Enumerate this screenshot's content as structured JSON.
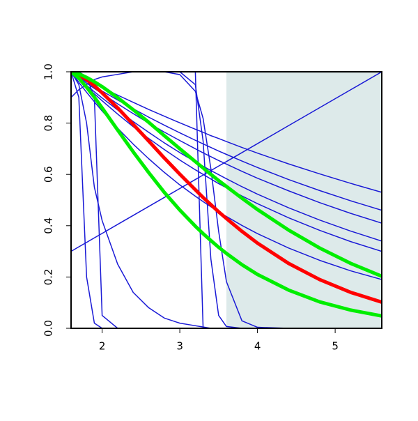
{
  "chart_data": {
    "type": "line",
    "x": [
      1.6,
      1.7,
      1.8,
      1.9,
      2.0,
      2.2,
      2.4,
      2.6,
      2.8,
      3.0,
      3.2,
      3.3,
      3.4,
      3.5,
      3.6,
      3.8,
      4.0,
      4.4,
      4.8,
      5.2,
      5.6
    ],
    "xlim": [
      1.6,
      5.6
    ],
    "ylim": [
      0,
      1
    ],
    "xticks": [
      2,
      3,
      4,
      5
    ],
    "yticks": [
      {
        "value": 0,
        "label": "0.0"
      },
      {
        "value": 0.2,
        "label": "0.2"
      },
      {
        "value": 0.4,
        "label": "0.4"
      },
      {
        "value": 0.6,
        "label": "0.6"
      },
      {
        "value": 0.8,
        "label": "0.8"
      },
      {
        "value": 1,
        "label": "1.0"
      }
    ],
    "shaded_region": {
      "xlim": [
        3.6,
        5.6
      ],
      "color": "#ddeaea"
    },
    "series": [
      {
        "color": "#1a1ad6",
        "width": 1.5,
        "values": [
          1,
          0.984,
          0.969,
          0.953,
          0.938,
          0.909,
          0.881,
          0.853,
          0.827,
          0.801,
          0.776,
          0.764,
          0.751,
          0.74,
          0.728,
          0.705,
          0.683,
          0.641,
          0.602,
          0.565,
          0.53
        ]
      },
      {
        "color": "#1a1ad6",
        "width": 1.5,
        "values": [
          1,
          0.981,
          0.962,
          0.944,
          0.925,
          0.89,
          0.856,
          0.823,
          0.792,
          0.762,
          0.733,
          0.719,
          0.705,
          0.691,
          0.678,
          0.652,
          0.627,
          0.58,
          0.537,
          0.497,
          0.46
        ]
      },
      {
        "color": "#1a1ad6",
        "width": 1.5,
        "values": [
          1,
          0.978,
          0.956,
          0.935,
          0.915,
          0.875,
          0.837,
          0.8,
          0.765,
          0.732,
          0.7,
          0.684,
          0.669,
          0.654,
          0.64,
          0.612,
          0.585,
          0.536,
          0.49,
          0.448,
          0.41
        ]
      },
      {
        "color": "#1a1ad6",
        "width": 1.5,
        "values": [
          1,
          0.973,
          0.947,
          0.922,
          0.898,
          0.851,
          0.806,
          0.764,
          0.723,
          0.685,
          0.649,
          0.632,
          0.615,
          0.599,
          0.583,
          0.552,
          0.523,
          0.47,
          0.422,
          0.379,
          0.34
        ]
      },
      {
        "color": "#1a1ad6",
        "width": 1.5,
        "values": [
          1,
          0.97,
          0.942,
          0.914,
          0.887,
          0.835,
          0.786,
          0.74,
          0.697,
          0.656,
          0.618,
          0.6,
          0.582,
          0.564,
          0.548,
          0.516,
          0.486,
          0.431,
          0.382,
          0.338,
          0.3
        ]
      },
      {
        "color": "#1a1ad6",
        "width": 1.5,
        "values": [
          1,
          0.959,
          0.92,
          0.883,
          0.847,
          0.78,
          0.718,
          0.661,
          0.608,
          0.559,
          0.515,
          0.494,
          0.474,
          0.454,
          0.436,
          0.401,
          0.369,
          0.313,
          0.265,
          0.224,
          0.19
        ]
      },
      {
        "color": "#1a1ad6",
        "width": 1.5,
        "values": [
          1,
          1,
          1,
          1,
          1,
          1,
          1,
          1,
          1,
          1,
          1,
          0,
          0,
          0,
          0,
          0,
          0,
          0,
          0,
          0,
          0
        ]
      },
      {
        "color": "#1a1ad6",
        "width": 1.5,
        "values": [
          0.9,
          0.93,
          0.95,
          0.97,
          0.98,
          0.99,
          1,
          1,
          1,
          1,
          0.95,
          0.73,
          0.27,
          0.05,
          0.007,
          0,
          0,
          0,
          0,
          0,
          0
        ]
      },
      {
        "color": "#1a1ad6",
        "width": 1.5,
        "values": [
          1,
          1,
          1,
          1,
          1,
          1,
          1,
          1,
          1,
          0.989,
          0.924,
          0.818,
          0.622,
          0.378,
          0.182,
          0.029,
          0.004,
          0,
          0,
          0,
          0
        ]
      },
      {
        "color": "#1a1ad6",
        "width": 1.5,
        "values": [
          1,
          0.9,
          0.2,
          0.02,
          0,
          0,
          0,
          0,
          0,
          0,
          0,
          0,
          0,
          0,
          0,
          0,
          0,
          0,
          0,
          0,
          0
        ]
      },
      {
        "color": "#1a1ad6",
        "width": 1.5,
        "values": [
          1,
          0.95,
          0.8,
          0.55,
          0.42,
          0.25,
          0.14,
          0.08,
          0.04,
          0.02,
          0.01,
          0.005,
          0,
          0,
          0,
          0,
          0,
          0,
          0,
          0,
          0
        ]
      },
      {
        "color": "#1a1ad6",
        "width": 1.5,
        "values": [
          1,
          1,
          0.98,
          0.9,
          0.05,
          0,
          0,
          0,
          0,
          0,
          0,
          0,
          0,
          0,
          0,
          0,
          0,
          0,
          0,
          0,
          0
        ]
      },
      {
        "color": "#1a1ad6",
        "width": 1.5,
        "values": [
          0.3,
          0.3175,
          0.335,
          0.3525,
          0.37,
          0.405,
          0.44,
          0.475,
          0.51,
          0.545,
          0.58,
          0.5975,
          0.615,
          0.6325,
          0.65,
          0.685,
          0.72,
          0.79,
          0.86,
          0.93,
          1.0
        ]
      },
      {
        "color": "#ff0000",
        "width": 5,
        "values": [
          1,
          0.988,
          0.969,
          0.945,
          0.918,
          0.859,
          0.795,
          0.73,
          0.664,
          0.601,
          0.54,
          0.51,
          0.482,
          0.454,
          0.428,
          0.378,
          0.332,
          0.253,
          0.19,
          0.14,
          0.102
        ]
      },
      {
        "color": "#00ee00",
        "width": 5,
        "values": [
          1,
          0.992,
          0.978,
          0.961,
          0.942,
          0.899,
          0.852,
          0.803,
          0.751,
          0.7,
          0.65,
          0.625,
          0.6,
          0.576,
          0.553,
          0.507,
          0.463,
          0.383,
          0.313,
          0.253,
          0.203
        ]
      },
      {
        "color": "#00ee00",
        "width": 5,
        "values": [
          1,
          0.975,
          0.94,
          0.901,
          0.859,
          0.773,
          0.688,
          0.607,
          0.53,
          0.461,
          0.398,
          0.369,
          0.342,
          0.316,
          0.292,
          0.248,
          0.21,
          0.149,
          0.103,
          0.071,
          0.048
        ]
      }
    ]
  }
}
